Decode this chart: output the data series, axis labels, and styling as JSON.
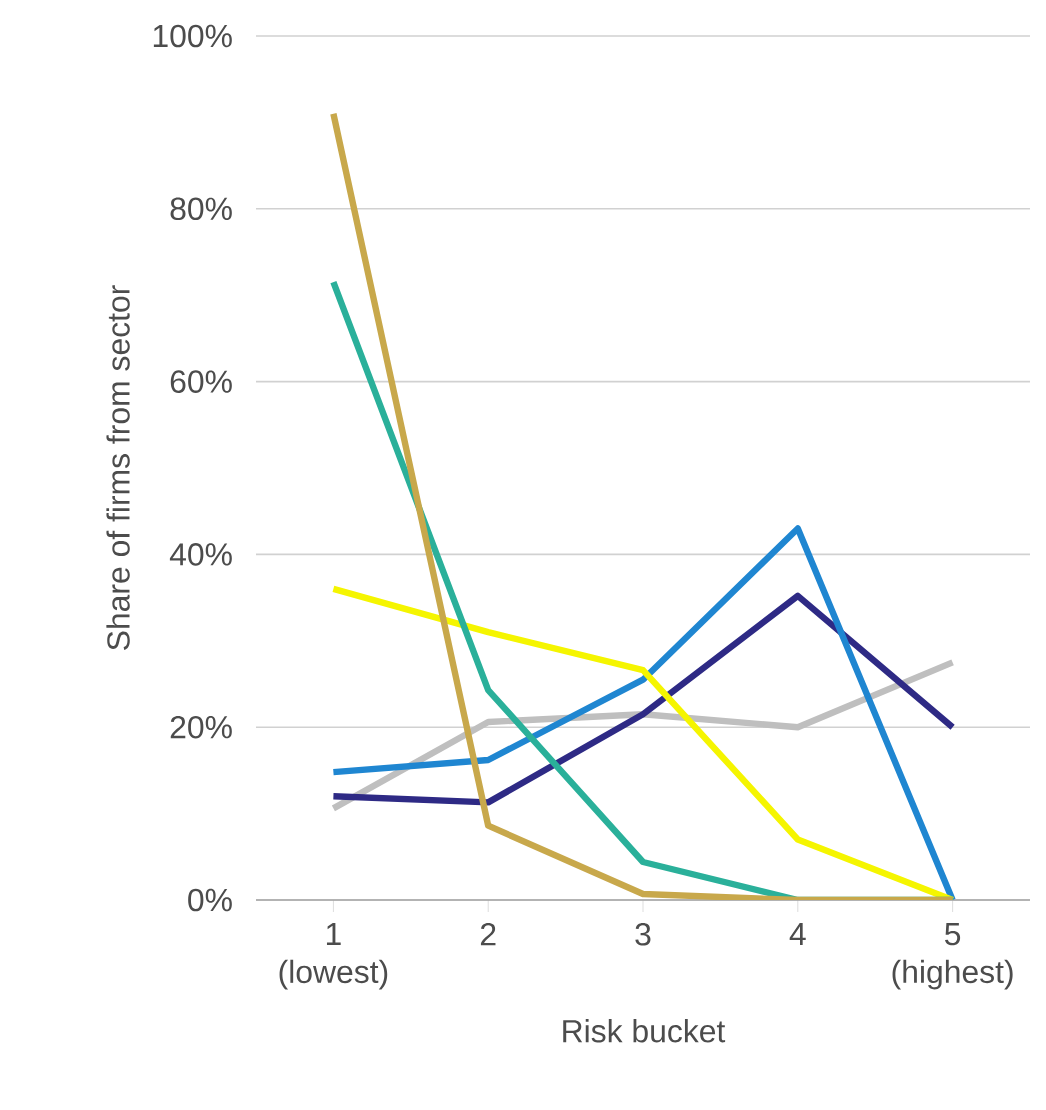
{
  "chart_data": {
    "type": "line",
    "xlabel": "Risk bucket",
    "ylabel": "Share of firms from sector",
    "categories": [
      "1",
      "2",
      "3",
      "4",
      "5"
    ],
    "annotations": [
      "(lowest)",
      "(highest)"
    ],
    "ylim": [
      0,
      100
    ],
    "yticks": [
      {
        "value": 0,
        "label": "0%"
      },
      {
        "value": 20,
        "label": "20%"
      },
      {
        "value": 40,
        "label": "40%"
      },
      {
        "value": 60,
        "label": "60%"
      },
      {
        "value": 80,
        "label": "80%"
      },
      {
        "value": 100,
        "label": "100%"
      }
    ],
    "grid": "y",
    "marker": "none",
    "line_style": "solid",
    "series": [
      {
        "color": "#bfbfbf",
        "values": [
          10.6,
          20.6,
          21.5,
          20,
          27.5
        ]
      },
      {
        "color": "#2e2a85",
        "values": [
          12,
          11.3,
          21.5,
          35.2,
          20
        ]
      },
      {
        "color": "#1f86d1",
        "values": [
          14.8,
          16.2,
          25.5,
          43,
          0
        ]
      },
      {
        "color": "#f5f500",
        "values": [
          36,
          31,
          26.6,
          7,
          0
        ]
      },
      {
        "color": "#2ab09a",
        "values": [
          71.5,
          24.3,
          4.4,
          0,
          0
        ]
      },
      {
        "color": "#c8a84b",
        "values": [
          91,
          8.6,
          0.7,
          0,
          0
        ]
      }
    ]
  }
}
